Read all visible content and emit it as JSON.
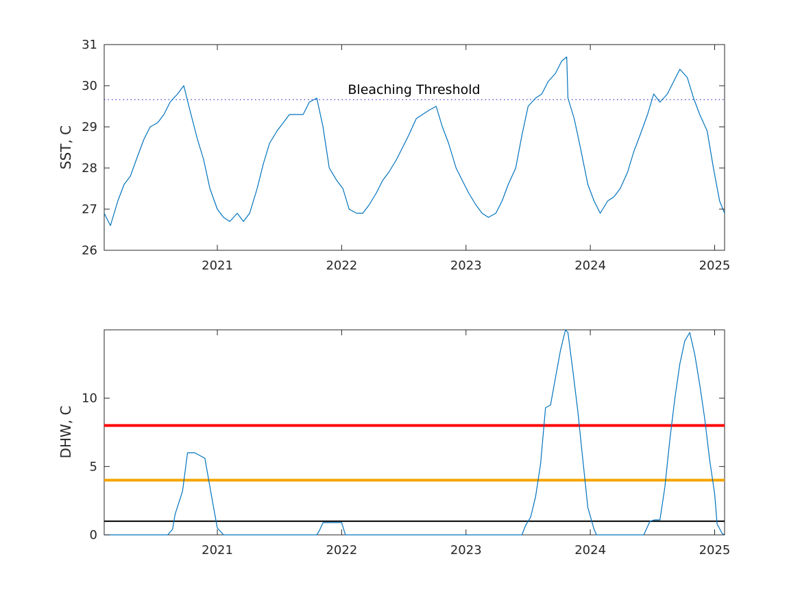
{
  "chart_data": [
    {
      "type": "line",
      "title": "",
      "xlabel": "",
      "ylabel": "SST, C",
      "xlim": [
        2020.09,
        2025.08
      ],
      "ylim": [
        26,
        31
      ],
      "xticks": [
        2021,
        2022,
        2023,
        2024,
        2025
      ],
      "xtick_labels": [
        "2021",
        "2022",
        "2023",
        "2024",
        "2025"
      ],
      "yticks": [
        26,
        27,
        28,
        29,
        30,
        31
      ],
      "ytick_labels": [
        "26",
        "27",
        "28",
        "29",
        "30",
        "31"
      ],
      "grid": false,
      "colors": {
        "series": "#0072bd",
        "threshold": "#3f3fd6"
      },
      "series": [
        {
          "x": [
            2020.09,
            2020.14,
            2020.2,
            2020.25,
            2020.3,
            2020.36,
            2020.41,
            2020.46,
            2020.52,
            2020.57,
            2020.62,
            2020.68,
            2020.73,
            2020.78,
            2020.84,
            2020.89,
            2020.94,
            2021.0,
            2021.05,
            2021.1,
            2021.16,
            2021.21,
            2021.26,
            2021.32,
            2021.37,
            2021.42,
            2021.48,
            2021.53,
            2021.58,
            2021.64,
            2021.69,
            2021.74,
            2021.8,
            2021.85,
            2021.9,
            2021.96,
            2022.01,
            2022.06,
            2022.12,
            2022.17,
            2022.22,
            2022.28,
            2022.33,
            2022.38,
            2022.44,
            2022.49,
            2022.54,
            2022.6,
            2022.65,
            2022.7,
            2022.76,
            2022.81,
            2022.86,
            2022.92,
            2022.97,
            2023.02,
            2023.08,
            2023.13,
            2023.18,
            2023.24,
            2023.29,
            2023.34,
            2023.4,
            2023.45,
            2023.5,
            2023.56,
            2023.61,
            2023.66,
            2023.72,
            2023.77,
            2023.81,
            2023.82,
            2023.87,
            2023.92,
            2023.98,
            2024.03,
            2024.08,
            2024.14,
            2024.19,
            2024.24,
            2024.3,
            2024.35,
            2024.4,
            2024.46,
            2024.51,
            2024.56,
            2024.62,
            2024.67,
            2024.72,
            2024.78,
            2024.83,
            2024.88,
            2024.94,
            2024.99,
            2025.04,
            2025.08
          ],
          "y": [
            26.9,
            26.6,
            27.2,
            27.6,
            27.8,
            28.3,
            28.7,
            29.0,
            29.1,
            29.3,
            29.6,
            29.8,
            30.0,
            29.4,
            28.7,
            28.2,
            27.5,
            27.0,
            26.8,
            26.7,
            26.9,
            26.7,
            26.9,
            27.5,
            28.1,
            28.6,
            28.9,
            29.1,
            29.3,
            29.3,
            29.3,
            29.6,
            29.7,
            29.0,
            28.0,
            27.7,
            27.5,
            27.0,
            26.9,
            26.9,
            27.1,
            27.4,
            27.7,
            27.9,
            28.2,
            28.5,
            28.8,
            29.2,
            29.3,
            29.4,
            29.5,
            29.0,
            28.6,
            28.0,
            27.7,
            27.4,
            27.1,
            26.9,
            26.8,
            26.9,
            27.2,
            27.6,
            28.0,
            28.8,
            29.5,
            29.7,
            29.8,
            30.1,
            30.3,
            30.6,
            30.7,
            29.7,
            29.2,
            28.5,
            27.6,
            27.2,
            26.9,
            27.2,
            27.3,
            27.5,
            27.9,
            28.4,
            28.8,
            29.3,
            29.8,
            29.6,
            29.8,
            30.1,
            30.4,
            30.2,
            29.7,
            29.3,
            28.9,
            28.0,
            27.2,
            26.9
          ]
        }
      ],
      "reference_lines": [
        {
          "y": 29.66,
          "style": "dotted",
          "color": "#3f3fd6"
        }
      ],
      "annotations": [
        {
          "text": "Bleaching Threshold",
          "x": 2022.58,
          "y": 29.88
        }
      ]
    },
    {
      "type": "line",
      "title": "",
      "xlabel": "",
      "ylabel": "DHW, C",
      "xlim": [
        2020.09,
        2025.08
      ],
      "ylim": [
        0,
        15
      ],
      "xticks": [
        2021,
        2022,
        2023,
        2024,
        2025
      ],
      "xtick_labels": [
        "2021",
        "2022",
        "2023",
        "2024",
        "2025"
      ],
      "yticks": [
        0,
        5,
        10
      ],
      "ytick_labels": [
        "0",
        "5",
        "10"
      ],
      "grid": false,
      "colors": {
        "series": "#0072bd",
        "red_line": "#ff0000",
        "orange_line": "#f5a500",
        "black_line": "#000000"
      },
      "series": [
        {
          "x": [
            2020.09,
            2020.6,
            2020.64,
            2020.66,
            2020.72,
            2020.76,
            2020.82,
            2020.9,
            2020.95,
            2021.0,
            2021.05,
            2021.8,
            2021.82,
            2021.85,
            2021.95,
            2022.0,
            2022.03,
            2023.0,
            2023.45,
            2023.48,
            2023.52,
            2023.56,
            2023.6,
            2023.64,
            2023.68,
            2023.72,
            2023.76,
            2023.8,
            2023.82,
            2023.86,
            2023.9,
            2023.94,
            2023.98,
            2024.03,
            2024.05,
            2024.3,
            2024.43,
            2024.48,
            2024.52,
            2024.56,
            2024.6,
            2024.64,
            2024.68,
            2024.72,
            2024.76,
            2024.8,
            2024.84,
            2024.88,
            2024.92,
            2024.96,
            2025.0,
            2025.02,
            2025.06,
            2025.08
          ],
          "y": [
            0,
            0,
            0.4,
            1.5,
            3.2,
            6.0,
            6.0,
            5.6,
            3.0,
            0.5,
            0,
            0,
            0.3,
            0.9,
            0.9,
            0.9,
            0,
            0,
            0,
            0.7,
            1.3,
            2.8,
            5.2,
            9.3,
            9.5,
            11.5,
            13.5,
            15.0,
            14.8,
            12.0,
            9.0,
            5.5,
            2.0,
            0.4,
            0,
            0,
            0,
            1.0,
            1.1,
            1.1,
            3.5,
            7.0,
            10.0,
            12.5,
            14.2,
            14.8,
            13.2,
            11.0,
            8.5,
            5.5,
            3.0,
            0.8,
            0.1,
            0
          ]
        }
      ],
      "reference_lines": [
        {
          "y": 8,
          "style": "solid",
          "color": "#ff0000"
        },
        {
          "y": 4,
          "style": "solid",
          "color": "#f5a500"
        },
        {
          "y": 1,
          "style": "solid",
          "color": "#000000"
        }
      ]
    }
  ]
}
